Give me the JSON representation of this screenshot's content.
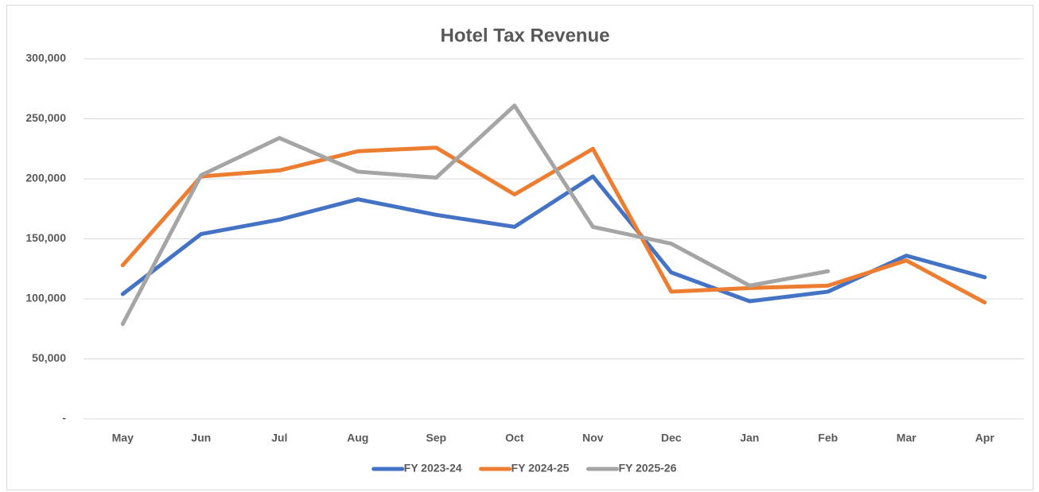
{
  "chart_data": {
    "type": "line",
    "title": "Hotel Tax Revenue",
    "categories": [
      "May",
      "Jun",
      "Jul",
      "Aug",
      "Sep",
      "Oct",
      "Nov",
      "Dec",
      "Jan",
      "Feb",
      "Mar",
      "Apr"
    ],
    "series": [
      {
        "name": "FY 2023-24",
        "color": "#4472c4",
        "values": [
          104000,
          154000,
          166000,
          183000,
          170000,
          160000,
          202000,
          122000,
          98000,
          106000,
          136000,
          118000
        ]
      },
      {
        "name": "FY 2024-25",
        "color": "#ed7d31",
        "values": [
          128000,
          202000,
          207000,
          223000,
          226000,
          187000,
          225000,
          106000,
          109000,
          111000,
          132000,
          97000
        ]
      },
      {
        "name": "FY 2025-26",
        "color": "#a5a5a5",
        "values": [
          79000,
          203000,
          234000,
          206000,
          201000,
          261000,
          160000,
          146000,
          111000,
          123000,
          null,
          null
        ]
      }
    ],
    "ylim": [
      0,
      300000
    ],
    "yticks": [
      {
        "value": 0,
        "label": "-"
      },
      {
        "value": 50000,
        "label": "50,000"
      },
      {
        "value": 100000,
        "label": "100,000"
      },
      {
        "value": 150000,
        "label": "150,000"
      },
      {
        "value": 200000,
        "label": "200,000"
      },
      {
        "value": 250000,
        "label": "250,000"
      },
      {
        "value": 300000,
        "label": "300,000"
      }
    ],
    "grid": true,
    "legend": "bottom"
  }
}
